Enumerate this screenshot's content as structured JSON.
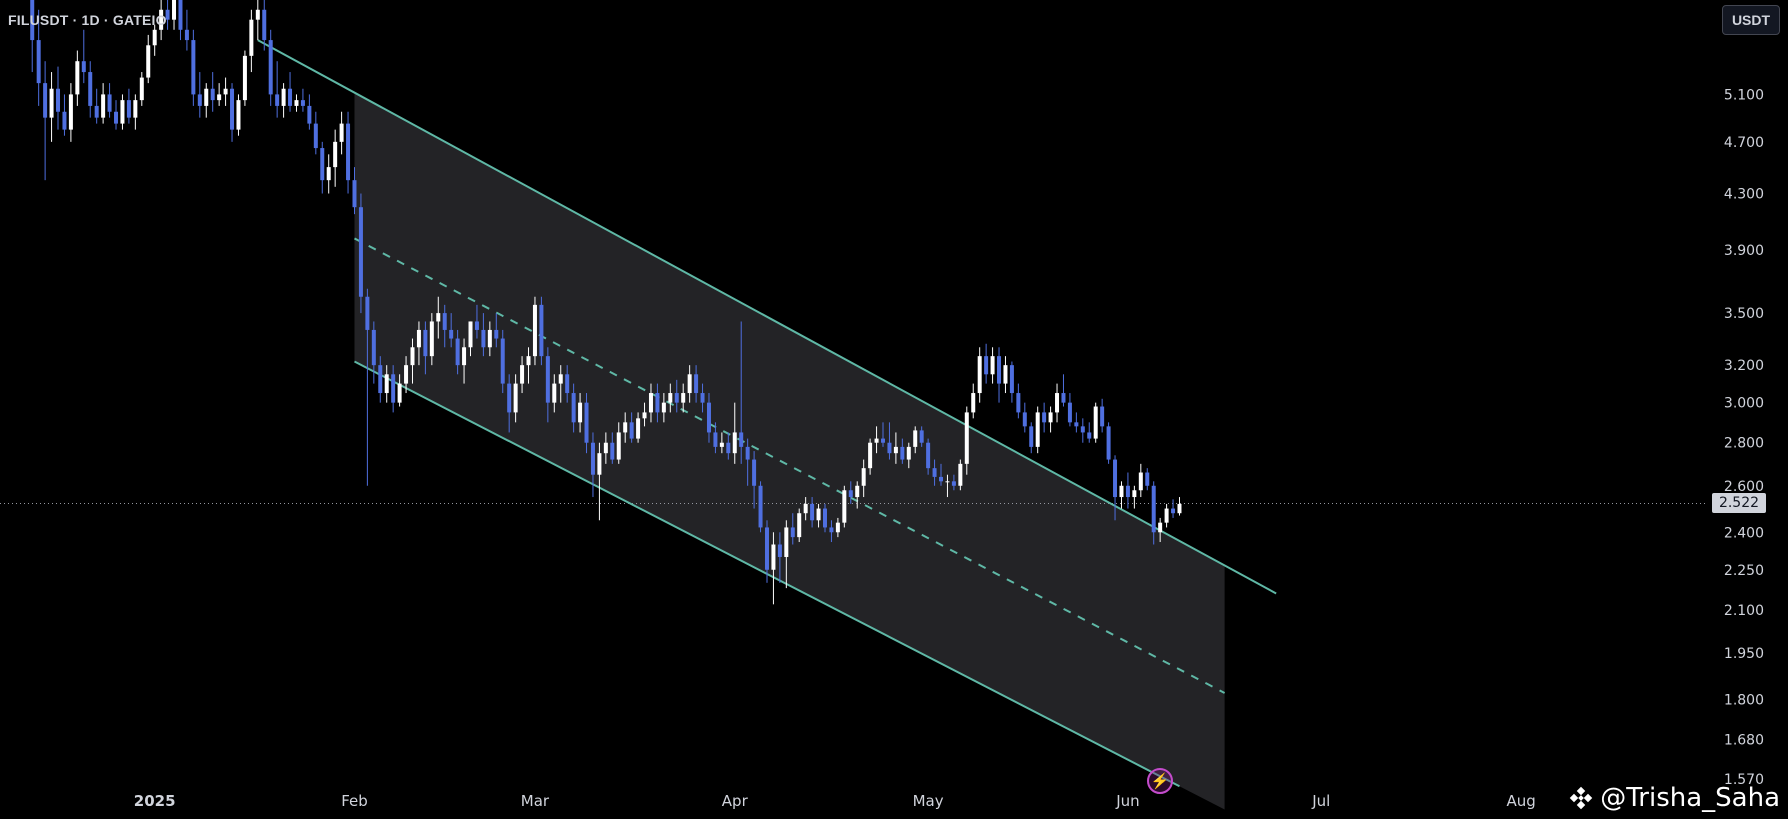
{
  "header": {
    "symbol_label": "FILUSDT · 1D · GATEIO"
  },
  "toolbar": {
    "unit_label": "USDT"
  },
  "last_price": {
    "label": "2.522",
    "value": 2.522
  },
  "watermark": {
    "text": "@Trisha_Saha",
    "icon": "exchange-diamond-icon"
  },
  "colors": {
    "up": "#ffffff",
    "down": "#4f6fe0",
    "channel": "#5fb8a6",
    "fill": "#232326",
    "bg": "#000000",
    "badge": "#c44ccc"
  },
  "chart_data": {
    "type": "candlestick",
    "title": "FILUSDT · 1D · GATEIO",
    "y_scale": "log",
    "ylim": [
      1.54,
      6.0
    ],
    "y_ticks": [
      5.1,
      4.7,
      4.3,
      3.9,
      3.5,
      3.2,
      3.0,
      2.8,
      2.6,
      2.4,
      2.25,
      2.1,
      1.95,
      1.8,
      1.68,
      1.57
    ],
    "y_tick_labels": [
      "5.100",
      "4.700",
      "4.300",
      "3.900",
      "3.500",
      "3.200",
      "3.000",
      "2.800",
      "2.600",
      "2.400",
      "2.250",
      "2.100",
      "1.950",
      "1.800",
      "1.680",
      "1.570"
    ],
    "x_range": [
      "2024-12-08",
      "2025-08-30"
    ],
    "x_ticks": [
      {
        "date": "2025-01-01",
        "label": "2025",
        "bold": true
      },
      {
        "date": "2025-02-01",
        "label": "Feb"
      },
      {
        "date": "2025-03-01",
        "label": "Mar"
      },
      {
        "date": "2025-04-01",
        "label": "Apr"
      },
      {
        "date": "2025-05-01",
        "label": "May"
      },
      {
        "date": "2025-06-01",
        "label": "Jun"
      },
      {
        "date": "2025-07-01",
        "label": "Jul"
      },
      {
        "date": "2025-08-01",
        "label": "Aug"
      }
    ],
    "channel": {
      "upper": [
        [
          "2025-01-17",
          5.6
        ],
        [
          "2025-06-24",
          2.16
        ]
      ],
      "middle": [
        [
          "2025-02-01",
          3.98
        ],
        [
          "2025-06-16",
          1.82
        ]
      ],
      "lower": [
        [
          "2025-02-01",
          3.22
        ],
        [
          "2025-06-09",
          1.55
        ]
      ],
      "fill_until": "2025-06-16"
    },
    "candles": [
      [
        "2024-12-13",
        6.0,
        6.3,
        5.3,
        5.6
      ],
      [
        "2024-12-14",
        5.6,
        5.9,
        5.0,
        5.2
      ],
      [
        "2024-12-15",
        5.2,
        5.4,
        4.4,
        4.9
      ],
      [
        "2024-12-16",
        4.9,
        5.3,
        4.7,
        5.15
      ],
      [
        "2024-12-17",
        5.15,
        5.35,
        4.8,
        4.95
      ],
      [
        "2024-12-18",
        4.95,
        5.1,
        4.75,
        4.8
      ],
      [
        "2024-12-19",
        4.8,
        5.2,
        4.7,
        5.1
      ],
      [
        "2024-12-20",
        5.1,
        5.5,
        5.0,
        5.4
      ],
      [
        "2024-12-21",
        5.4,
        5.7,
        5.2,
        5.3
      ],
      [
        "2024-12-22",
        5.3,
        5.4,
        4.9,
        5.0
      ],
      [
        "2024-12-23",
        5.0,
        5.15,
        4.85,
        4.9
      ],
      [
        "2024-12-24",
        4.9,
        5.2,
        4.85,
        5.1
      ],
      [
        "2024-12-25",
        5.1,
        5.2,
        4.9,
        4.95
      ],
      [
        "2024-12-26",
        4.95,
        5.05,
        4.8,
        4.85
      ],
      [
        "2024-12-27",
        4.85,
        5.1,
        4.8,
        5.05
      ],
      [
        "2024-12-28",
        5.05,
        5.15,
        4.85,
        4.9
      ],
      [
        "2024-12-29",
        4.9,
        5.1,
        4.8,
        5.05
      ],
      [
        "2024-12-30",
        5.05,
        5.3,
        5.0,
        5.25
      ],
      [
        "2024-12-31",
        5.25,
        5.65,
        5.2,
        5.55
      ],
      [
        "2025-01-01",
        5.55,
        5.75,
        5.45,
        5.7
      ],
      [
        "2025-01-02",
        5.7,
        6.1,
        5.6,
        5.9
      ],
      [
        "2025-01-03",
        5.9,
        6.2,
        5.7,
        5.8
      ],
      [
        "2025-01-04",
        5.8,
        6.4,
        5.7,
        6.2
      ],
      [
        "2025-01-05",
        6.2,
        6.3,
        5.6,
        5.7
      ],
      [
        "2025-01-06",
        5.7,
        5.9,
        5.5,
        5.6
      ],
      [
        "2025-01-07",
        5.6,
        5.7,
        5.0,
        5.1
      ],
      [
        "2025-01-08",
        5.1,
        5.3,
        4.9,
        5.0
      ],
      [
        "2025-01-09",
        5.0,
        5.2,
        4.9,
        5.15
      ],
      [
        "2025-01-10",
        5.15,
        5.3,
        4.95,
        5.05
      ],
      [
        "2025-01-11",
        5.05,
        5.2,
        5.0,
        5.1
      ],
      [
        "2025-01-12",
        5.1,
        5.25,
        5.0,
        5.15
      ],
      [
        "2025-01-13",
        5.15,
        5.2,
        4.7,
        4.8
      ],
      [
        "2025-01-14",
        4.8,
        5.1,
        4.75,
        5.05
      ],
      [
        "2025-01-15",
        5.05,
        5.5,
        5.0,
        5.45
      ],
      [
        "2025-01-16",
        5.45,
        5.9,
        5.3,
        5.8
      ],
      [
        "2025-01-17",
        5.8,
        6.1,
        5.6,
        5.9
      ],
      [
        "2025-01-18",
        5.9,
        6.0,
        5.5,
        5.6
      ],
      [
        "2025-01-19",
        5.6,
        5.7,
        5.0,
        5.1
      ],
      [
        "2025-01-20",
        5.1,
        5.4,
        4.9,
        5.0
      ],
      [
        "2025-01-21",
        5.0,
        5.2,
        4.9,
        5.15
      ],
      [
        "2025-01-22",
        5.15,
        5.3,
        4.95,
        5.0
      ],
      [
        "2025-01-23",
        5.0,
        5.1,
        4.95,
        5.05
      ],
      [
        "2025-01-24",
        5.05,
        5.15,
        4.95,
        5.0
      ],
      [
        "2025-01-25",
        5.0,
        5.1,
        4.8,
        4.85
      ],
      [
        "2025-01-26",
        4.85,
        4.95,
        4.6,
        4.65
      ],
      [
        "2025-01-27",
        4.65,
        4.7,
        4.3,
        4.4
      ],
      [
        "2025-01-28",
        4.4,
        4.6,
        4.3,
        4.5
      ],
      [
        "2025-01-29",
        4.5,
        4.8,
        4.35,
        4.7
      ],
      [
        "2025-01-30",
        4.7,
        4.95,
        4.6,
        4.85
      ],
      [
        "2025-01-31",
        4.85,
        4.95,
        4.3,
        4.4
      ],
      [
        "2025-02-01",
        4.4,
        4.5,
        4.15,
        4.2
      ],
      [
        "2025-02-02",
        4.2,
        4.3,
        3.5,
        3.6
      ],
      [
        "2025-02-03",
        3.6,
        3.65,
        2.6,
        3.4
      ],
      [
        "2025-02-04",
        3.4,
        3.45,
        3.1,
        3.2
      ],
      [
        "2025-02-05",
        3.2,
        3.25,
        3.0,
        3.05
      ],
      [
        "2025-02-06",
        3.05,
        3.2,
        3.0,
        3.15
      ],
      [
        "2025-02-07",
        3.15,
        3.2,
        2.95,
        3.0
      ],
      [
        "2025-02-08",
        3.0,
        3.15,
        2.98,
        3.1
      ],
      [
        "2025-02-09",
        3.1,
        3.25,
        3.05,
        3.2
      ],
      [
        "2025-02-10",
        3.2,
        3.35,
        3.1,
        3.3
      ],
      [
        "2025-02-11",
        3.3,
        3.45,
        3.2,
        3.4
      ],
      [
        "2025-02-12",
        3.4,
        3.45,
        3.15,
        3.25
      ],
      [
        "2025-02-13",
        3.25,
        3.5,
        3.2,
        3.45
      ],
      [
        "2025-02-14",
        3.45,
        3.6,
        3.35,
        3.5
      ],
      [
        "2025-02-15",
        3.5,
        3.55,
        3.3,
        3.4
      ],
      [
        "2025-02-16",
        3.4,
        3.5,
        3.3,
        3.35
      ],
      [
        "2025-02-17",
        3.35,
        3.4,
        3.15,
        3.2
      ],
      [
        "2025-02-18",
        3.2,
        3.35,
        3.1,
        3.3
      ],
      [
        "2025-02-19",
        3.3,
        3.45,
        3.25,
        3.45
      ],
      [
        "2025-02-20",
        3.45,
        3.55,
        3.35,
        3.4
      ],
      [
        "2025-02-21",
        3.4,
        3.5,
        3.25,
        3.3
      ],
      [
        "2025-02-22",
        3.3,
        3.45,
        3.25,
        3.4
      ],
      [
        "2025-02-23",
        3.4,
        3.5,
        3.3,
        3.35
      ],
      [
        "2025-02-24",
        3.35,
        3.4,
        3.05,
        3.1
      ],
      [
        "2025-02-25",
        3.1,
        3.15,
        2.85,
        2.95
      ],
      [
        "2025-02-26",
        2.95,
        3.15,
        2.9,
        3.1
      ],
      [
        "2025-02-27",
        3.1,
        3.25,
        3.05,
        3.2
      ],
      [
        "2025-02-28",
        3.2,
        3.3,
        3.1,
        3.25
      ],
      [
        "2025-03-01",
        3.25,
        3.6,
        3.2,
        3.55
      ],
      [
        "2025-03-02",
        3.55,
        3.6,
        3.2,
        3.25
      ],
      [
        "2025-03-03",
        3.25,
        3.3,
        2.9,
        3.0
      ],
      [
        "2025-03-04",
        3.0,
        3.15,
        2.95,
        3.1
      ],
      [
        "2025-03-05",
        3.1,
        3.2,
        3.0,
        3.15
      ],
      [
        "2025-03-06",
        3.15,
        3.2,
        3.0,
        3.05
      ],
      [
        "2025-03-07",
        3.05,
        3.1,
        2.85,
        2.9
      ],
      [
        "2025-03-08",
        2.9,
        3.05,
        2.85,
        3.0
      ],
      [
        "2025-03-09",
        3.0,
        3.05,
        2.75,
        2.8
      ],
      [
        "2025-03-10",
        2.8,
        2.85,
        2.55,
        2.65
      ],
      [
        "2025-03-11",
        2.65,
        2.8,
        2.45,
        2.75
      ],
      [
        "2025-03-12",
        2.75,
        2.85,
        2.7,
        2.8
      ],
      [
        "2025-03-13",
        2.8,
        2.85,
        2.7,
        2.72
      ],
      [
        "2025-03-14",
        2.72,
        2.9,
        2.7,
        2.85
      ],
      [
        "2025-03-15",
        2.85,
        2.95,
        2.8,
        2.9
      ],
      [
        "2025-03-16",
        2.9,
        2.95,
        2.8,
        2.82
      ],
      [
        "2025-03-17",
        2.82,
        2.95,
        2.8,
        2.92
      ],
      [
        "2025-03-18",
        2.92,
        3.0,
        2.88,
        2.95
      ],
      [
        "2025-03-19",
        2.95,
        3.1,
        2.9,
        3.05
      ],
      [
        "2025-03-20",
        3.05,
        3.1,
        2.9,
        2.95
      ],
      [
        "2025-03-21",
        2.95,
        3.05,
        2.9,
        3.0
      ],
      [
        "2025-03-22",
        3.0,
        3.1,
        2.95,
        3.05
      ],
      [
        "2025-03-23",
        3.05,
        3.12,
        2.95,
        3.0
      ],
      [
        "2025-03-24",
        3.0,
        3.1,
        2.95,
        3.05
      ],
      [
        "2025-03-25",
        3.05,
        3.2,
        3.0,
        3.15
      ],
      [
        "2025-03-26",
        3.15,
        3.2,
        3.0,
        3.05
      ],
      [
        "2025-03-27",
        3.05,
        3.1,
        2.95,
        3.0
      ],
      [
        "2025-03-28",
        3.0,
        3.05,
        2.8,
        2.85
      ],
      [
        "2025-03-29",
        2.85,
        2.9,
        2.75,
        2.78
      ],
      [
        "2025-03-30",
        2.78,
        2.85,
        2.75,
        2.8
      ],
      [
        "2025-03-31",
        2.8,
        2.85,
        2.72,
        2.75
      ],
      [
        "2025-04-01",
        2.75,
        3.0,
        2.7,
        2.85
      ],
      [
        "2025-04-02",
        2.85,
        3.45,
        2.7,
        2.78
      ],
      [
        "2025-04-03",
        2.78,
        2.82,
        2.6,
        2.72
      ],
      [
        "2025-04-04",
        2.72,
        2.76,
        2.5,
        2.6
      ],
      [
        "2025-04-05",
        2.6,
        2.62,
        2.4,
        2.42
      ],
      [
        "2025-04-06",
        2.42,
        2.45,
        2.2,
        2.25
      ],
      [
        "2025-04-07",
        2.25,
        2.4,
        2.12,
        2.35
      ],
      [
        "2025-04-08",
        2.35,
        2.4,
        2.2,
        2.3
      ],
      [
        "2025-04-09",
        2.3,
        2.45,
        2.18,
        2.42
      ],
      [
        "2025-04-10",
        2.42,
        2.48,
        2.35,
        2.38
      ],
      [
        "2025-04-11",
        2.38,
        2.5,
        2.36,
        2.48
      ],
      [
        "2025-04-12",
        2.48,
        2.55,
        2.45,
        2.52
      ],
      [
        "2025-04-13",
        2.52,
        2.55,
        2.42,
        2.45
      ],
      [
        "2025-04-14",
        2.45,
        2.52,
        2.42,
        2.5
      ],
      [
        "2025-04-15",
        2.5,
        2.52,
        2.4,
        2.42
      ],
      [
        "2025-04-16",
        2.42,
        2.45,
        2.36,
        2.4
      ],
      [
        "2025-04-17",
        2.4,
        2.46,
        2.38,
        2.44
      ],
      [
        "2025-04-18",
        2.44,
        2.6,
        2.42,
        2.58
      ],
      [
        "2025-04-19",
        2.58,
        2.62,
        2.52,
        2.55
      ],
      [
        "2025-04-20",
        2.55,
        2.62,
        2.5,
        2.6
      ],
      [
        "2025-04-21",
        2.6,
        2.72,
        2.55,
        2.68
      ],
      [
        "2025-04-22",
        2.68,
        2.82,
        2.65,
        2.8
      ],
      [
        "2025-04-23",
        2.8,
        2.88,
        2.75,
        2.82
      ],
      [
        "2025-04-24",
        2.82,
        2.9,
        2.78,
        2.8
      ],
      [
        "2025-04-25",
        2.8,
        2.9,
        2.72,
        2.75
      ],
      [
        "2025-04-26",
        2.75,
        2.85,
        2.7,
        2.78
      ],
      [
        "2025-04-27",
        2.78,
        2.82,
        2.7,
        2.72
      ],
      [
        "2025-04-28",
        2.72,
        2.8,
        2.68,
        2.78
      ],
      [
        "2025-04-29",
        2.78,
        2.88,
        2.75,
        2.86
      ],
      [
        "2025-04-30",
        2.86,
        2.88,
        2.78,
        2.8
      ],
      [
        "2025-05-01",
        2.8,
        2.82,
        2.65,
        2.68
      ],
      [
        "2025-05-02",
        2.68,
        2.72,
        2.6,
        2.64
      ],
      [
        "2025-05-03",
        2.64,
        2.7,
        2.6,
        2.62
      ],
      [
        "2025-05-04",
        2.62,
        2.65,
        2.55,
        2.62
      ],
      [
        "2025-05-05",
        2.62,
        2.65,
        2.58,
        2.6
      ],
      [
        "2025-05-06",
        2.6,
        2.72,
        2.58,
        2.7
      ],
      [
        "2025-05-07",
        2.7,
        2.98,
        2.65,
        2.95
      ],
      [
        "2025-05-08",
        2.95,
        3.1,
        2.92,
        3.05
      ],
      [
        "2025-05-09",
        3.05,
        3.3,
        3.0,
        3.25
      ],
      [
        "2025-05-10",
        3.25,
        3.32,
        3.1,
        3.15
      ],
      [
        "2025-05-11",
        3.15,
        3.3,
        3.1,
        3.25
      ],
      [
        "2025-05-12",
        3.25,
        3.3,
        3.0,
        3.1
      ],
      [
        "2025-05-13",
        3.1,
        3.25,
        3.05,
        3.2
      ],
      [
        "2025-05-14",
        3.2,
        3.22,
        3.0,
        3.05
      ],
      [
        "2025-05-15",
        3.05,
        3.1,
        2.92,
        2.95
      ],
      [
        "2025-05-16",
        2.95,
        3.0,
        2.85,
        2.88
      ],
      [
        "2025-05-17",
        2.88,
        2.9,
        2.75,
        2.78
      ],
      [
        "2025-05-18",
        2.78,
        2.98,
        2.75,
        2.95
      ],
      [
        "2025-05-19",
        2.95,
        3.0,
        2.85,
        2.9
      ],
      [
        "2025-05-20",
        2.9,
        2.98,
        2.85,
        2.95
      ],
      [
        "2025-05-21",
        2.95,
        3.1,
        2.9,
        3.05
      ],
      [
        "2025-05-22",
        3.05,
        3.15,
        2.98,
        3.0
      ],
      [
        "2025-05-23",
        3.0,
        3.05,
        2.88,
        2.9
      ],
      [
        "2025-05-24",
        2.9,
        2.95,
        2.85,
        2.88
      ],
      [
        "2025-05-25",
        2.88,
        2.92,
        2.8,
        2.85
      ],
      [
        "2025-05-26",
        2.85,
        2.9,
        2.8,
        2.82
      ],
      [
        "2025-05-27",
        2.82,
        3.0,
        2.8,
        2.98
      ],
      [
        "2025-05-28",
        2.98,
        3.02,
        2.85,
        2.88
      ],
      [
        "2025-05-29",
        2.88,
        2.9,
        2.7,
        2.72
      ],
      [
        "2025-05-30",
        2.72,
        2.74,
        2.45,
        2.55
      ],
      [
        "2025-05-31",
        2.55,
        2.62,
        2.5,
        2.6
      ],
      [
        "2025-06-01",
        2.6,
        2.66,
        2.5,
        2.55
      ],
      [
        "2025-06-02",
        2.55,
        2.6,
        2.5,
        2.58
      ],
      [
        "2025-06-03",
        2.58,
        2.7,
        2.55,
        2.66
      ],
      [
        "2025-06-04",
        2.66,
        2.68,
        2.58,
        2.6
      ],
      [
        "2025-06-05",
        2.6,
        2.62,
        2.35,
        2.4
      ],
      [
        "2025-06-06",
        2.4,
        2.46,
        2.36,
        2.44
      ],
      [
        "2025-06-07",
        2.44,
        2.52,
        2.42,
        2.5
      ],
      [
        "2025-06-08",
        2.5,
        2.54,
        2.46,
        2.48
      ],
      [
        "2025-06-09",
        2.48,
        2.55,
        2.47,
        2.52
      ]
    ]
  }
}
